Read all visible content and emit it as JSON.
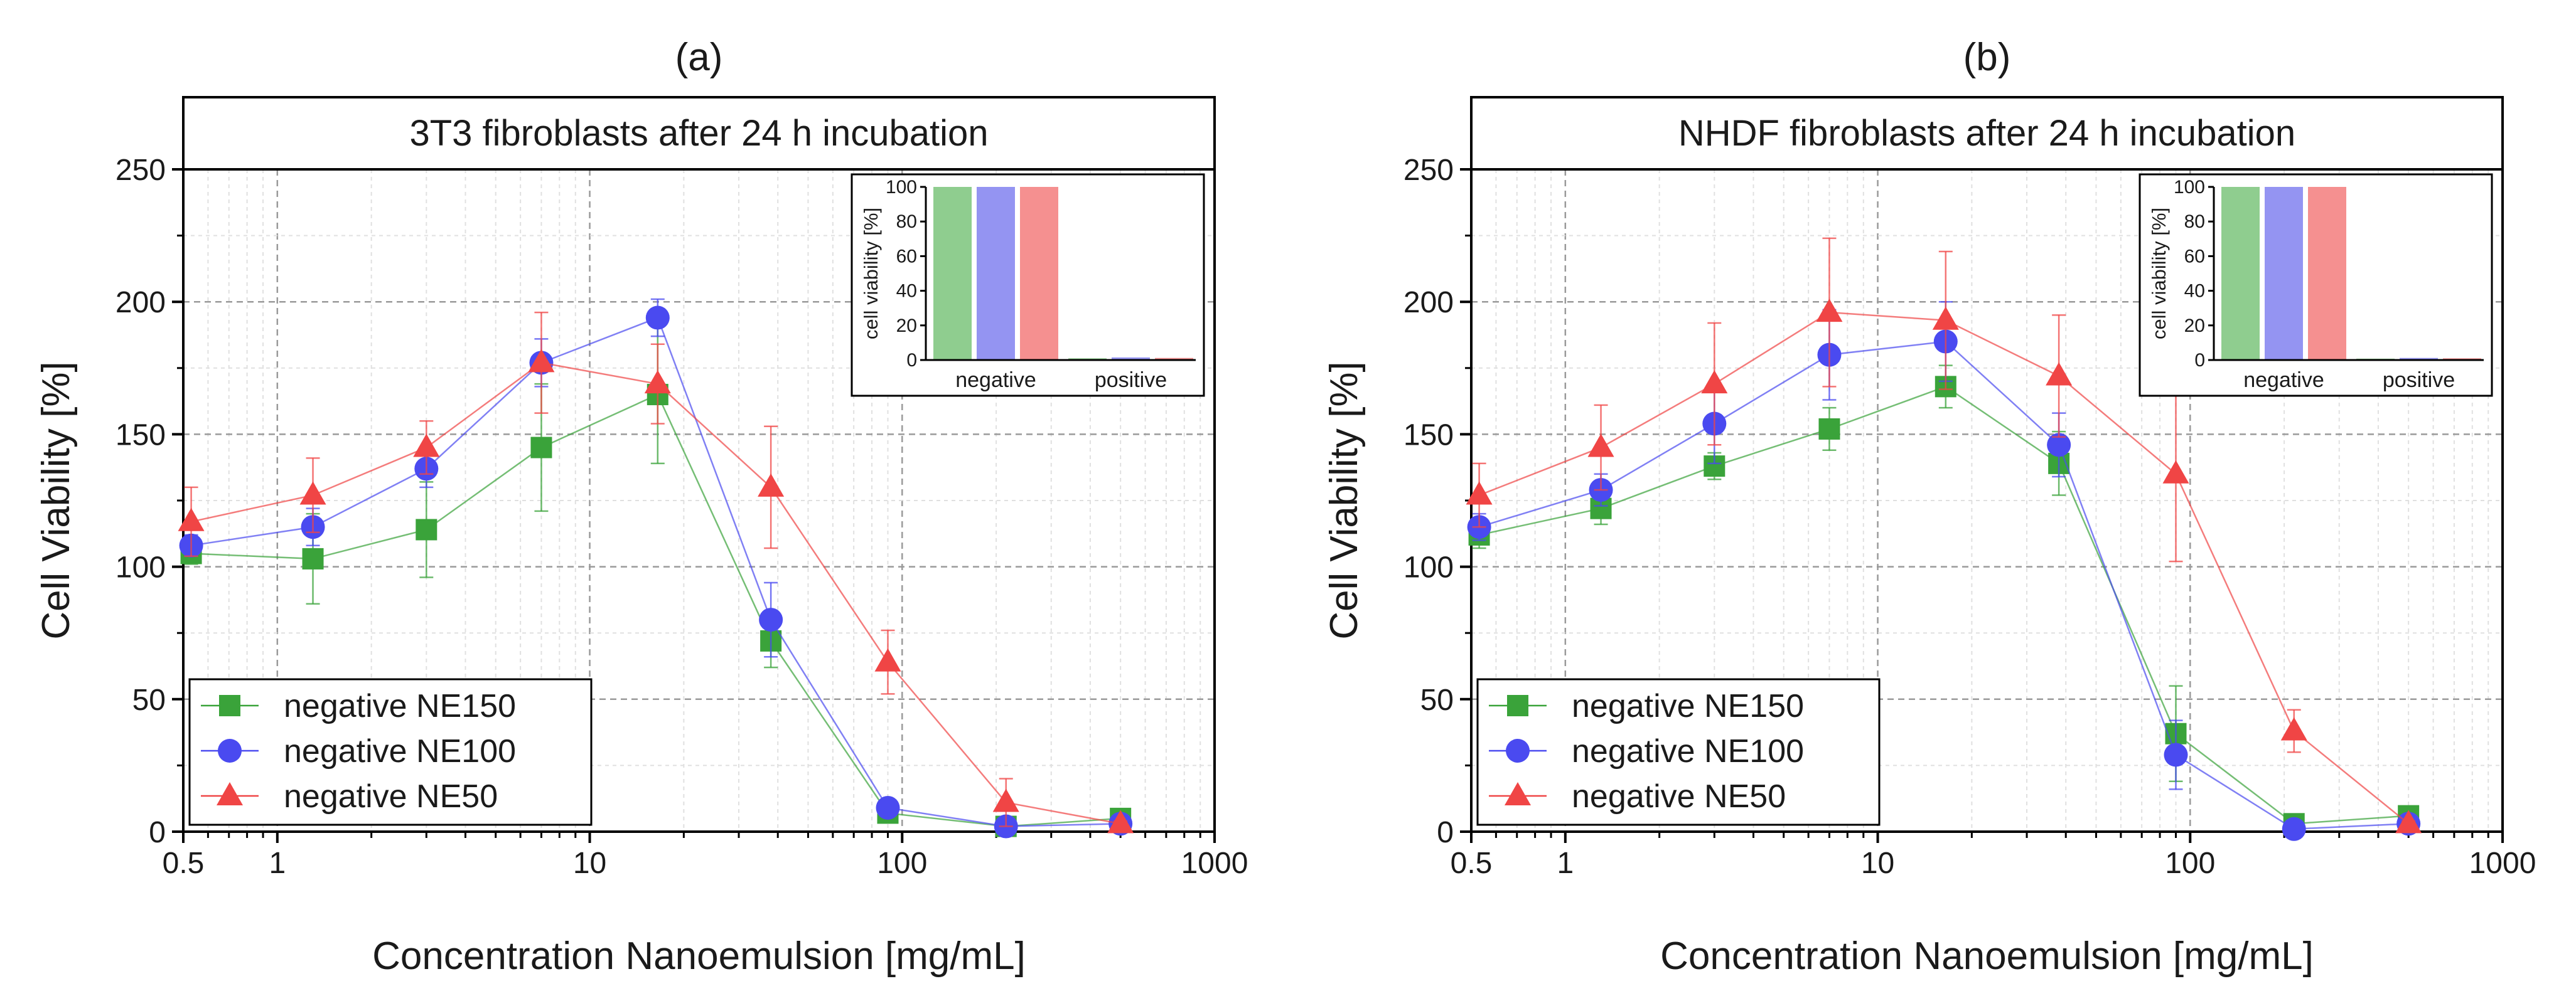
{
  "colors": {
    "ne150": "#3aa33a",
    "ne100": "#4a4af0",
    "ne50": "#f04545",
    "ne150_bar": "#8fcd8f",
    "ne100_bar": "#9494f2",
    "ne50_bar": "#f59090",
    "grid": "#c8c8c8",
    "axis": "#000000"
  },
  "chart_data": [
    {
      "type": "line",
      "panel_label": "(a)",
      "title": "3T3 fibroblasts after 24 h incubation",
      "xlabel": "Concentration Nanoemulsion [mg/mL]",
      "ylabel": "Cell Viability [%]",
      "xscale": "log",
      "xlim": [
        0.5,
        1000
      ],
      "ylim": [
        0,
        250
      ],
      "xticks": [
        0.5,
        1,
        10,
        100,
        1000
      ],
      "xtick_labels": [
        "0.5",
        "1",
        "10",
        "100",
        "1000"
      ],
      "yticks": [
        0,
        50,
        100,
        150,
        200,
        250
      ],
      "ytick_labels": [
        "0",
        "50",
        "100",
        "150",
        "200",
        "250"
      ],
      "grid": true,
      "legend_position": "bottom-left",
      "x": [
        0.53,
        1.3,
        3,
        7,
        16.5,
        38,
        90,
        215,
        500
      ],
      "series": [
        {
          "name": "negative NE150",
          "marker": "square",
          "color_key": "ne150",
          "values": [
            105,
            103,
            114,
            145,
            165,
            72,
            7,
            2,
            5
          ],
          "errors": [
            4,
            17,
            18,
            24,
            26,
            10,
            3,
            1,
            1
          ]
        },
        {
          "name": "negative NE100",
          "marker": "circle",
          "color_key": "ne100",
          "values": [
            108,
            115,
            137,
            177,
            194,
            80,
            9,
            2,
            3
          ],
          "errors": [
            4,
            7,
            7,
            9,
            7,
            14,
            3,
            1,
            1
          ]
        },
        {
          "name": "negative NE50",
          "marker": "triangle",
          "color_key": "ne50",
          "values": [
            117,
            127,
            145,
            177,
            169,
            130,
            64,
            11,
            3
          ],
          "errors": [
            13,
            14,
            10,
            19,
            15,
            23,
            12,
            9,
            1
          ]
        }
      ],
      "inset": {
        "type": "bar",
        "ylabel": "cell viability [%]",
        "ylim": [
          0,
          100
        ],
        "yticks": [
          0,
          20,
          40,
          60,
          80,
          100
        ],
        "ytick_labels": [
          "0",
          "20",
          "40",
          "60",
          "80",
          "100"
        ],
        "categories": [
          "negative",
          "positive"
        ],
        "series": [
          {
            "name": "NE150",
            "color_key": "ne150_bar",
            "values": [
              100,
              1
            ]
          },
          {
            "name": "NE100",
            "color_key": "ne100_bar",
            "values": [
              100,
              1.5
            ]
          },
          {
            "name": "NE50",
            "color_key": "ne50_bar",
            "values": [
              100,
              1.2
            ]
          }
        ]
      }
    },
    {
      "type": "line",
      "panel_label": "(b)",
      "title": "NHDF fibroblasts after 24 h incubation",
      "xlabel": "Concentration Nanoemulsion [mg/mL]",
      "ylabel": "Cell Viability [%]",
      "xscale": "log",
      "xlim": [
        0.5,
        1000
      ],
      "ylim": [
        0,
        250
      ],
      "xticks": [
        0.5,
        1,
        10,
        100,
        1000
      ],
      "xtick_labels": [
        "0.5",
        "1",
        "10",
        "100",
        "1000"
      ],
      "yticks": [
        0,
        50,
        100,
        150,
        200,
        250
      ],
      "ytick_labels": [
        "0",
        "50",
        "100",
        "150",
        "200",
        "250"
      ],
      "grid": true,
      "legend_position": "bottom-left",
      "x": [
        0.53,
        1.3,
        3,
        7,
        16.5,
        38,
        90,
        215,
        500
      ],
      "series": [
        {
          "name": "negative NE150",
          "marker": "square",
          "color_key": "ne150",
          "values": [
            112,
            122,
            138,
            152,
            168,
            139,
            37,
            3,
            6
          ],
          "errors": [
            5,
            6,
            5,
            8,
            8,
            12,
            18,
            2,
            1
          ]
        },
        {
          "name": "negative NE100",
          "marker": "circle",
          "color_key": "ne100",
          "values": [
            115,
            129,
            154,
            180,
            185,
            146,
            29,
            1,
            3
          ],
          "errors": [
            5,
            6,
            15,
            17,
            15,
            12,
            13,
            1,
            1
          ]
        },
        {
          "name": "negative NE50",
          "marker": "triangle",
          "color_key": "ne50",
          "values": [
            127,
            145,
            169,
            196,
            193,
            172,
            135,
            38,
            3
          ],
          "errors": [
            12,
            16,
            23,
            28,
            26,
            23,
            33,
            8,
            1
          ]
        }
      ],
      "inset": {
        "type": "bar",
        "ylabel": "cell viability [%]",
        "ylim": [
          0,
          100
        ],
        "yticks": [
          0,
          20,
          40,
          60,
          80,
          100
        ],
        "ytick_labels": [
          "0",
          "20",
          "40",
          "60",
          "80",
          "100"
        ],
        "categories": [
          "negative",
          "positive"
        ],
        "series": [
          {
            "name": "NE150",
            "color_key": "ne150_bar",
            "values": [
              100,
              0.8
            ]
          },
          {
            "name": "NE100",
            "color_key": "ne100_bar",
            "values": [
              100,
              1.2
            ]
          },
          {
            "name": "NE50",
            "color_key": "ne50_bar",
            "values": [
              100,
              1.0
            ]
          }
        ]
      }
    }
  ]
}
